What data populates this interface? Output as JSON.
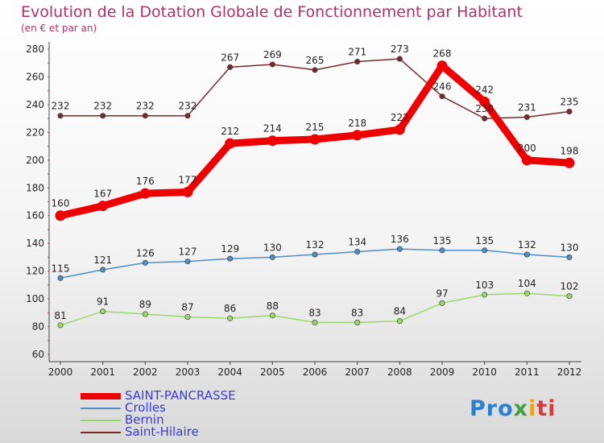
{
  "chart_data": {
    "type": "line",
    "title": "Evolution de la Dotation Globale de Fonctionnement par Habitant",
    "subtitle": "(en € et par an)",
    "x": [
      "2000",
      "2001",
      "2002",
      "2003",
      "2004",
      "2005",
      "2006",
      "2007",
      "2008",
      "2009",
      "2010",
      "2011",
      "2012"
    ],
    "ylim": [
      60,
      280
    ],
    "yticks": [
      "60",
      "80",
      "100",
      "120",
      "140",
      "160",
      "180",
      "200",
      "220",
      "240",
      "260",
      "280"
    ],
    "grid": false,
    "legend_position": "bottom-left",
    "series": [
      {
        "name": "SAINT-PANCRASSE",
        "color": "#ee0000",
        "values": [
          160,
          167,
          176,
          177,
          212,
          214,
          215,
          218,
          222,
          268,
          242,
          200,
          198
        ],
        "value_labels": [
          "160",
          "167",
          "176",
          "177",
          "212",
          "214",
          "215",
          "218",
          "222",
          "268",
          "242",
          "200",
          "198"
        ]
      },
      {
        "name": "Crolles",
        "color": "#4d8ec4",
        "values": [
          115,
          121,
          126,
          127,
          129,
          130,
          132,
          134,
          136,
          135,
          135,
          132,
          130
        ],
        "value_labels": [
          "115",
          "121",
          "126",
          "127",
          "129",
          "130",
          "132",
          "134",
          "136",
          "135",
          "135",
          "132",
          "130"
        ]
      },
      {
        "name": "Bernin",
        "color": "#9bd86a",
        "values": [
          81,
          91,
          89,
          87,
          86,
          88,
          83,
          83,
          84,
          97,
          103,
          104,
          102
        ],
        "value_labels": [
          "81",
          "91",
          "89",
          "87",
          "86",
          "88",
          "83",
          "83",
          "84",
          "97",
          "103",
          "104",
          "102"
        ]
      },
      {
        "name": "Saint-Hilaire",
        "color": "#7a2a2a",
        "values": [
          232,
          232,
          232,
          232,
          267,
          269,
          265,
          271,
          273,
          246,
          230,
          231,
          235
        ],
        "value_labels": [
          "232",
          "232",
          "232",
          "232",
          "267",
          "269",
          "265",
          "271",
          "273",
          "246",
          "230",
          "231",
          "235"
        ]
      }
    ]
  },
  "branding": {
    "logo_parts": [
      "Pro",
      "x",
      "i",
      "ti"
    ]
  }
}
